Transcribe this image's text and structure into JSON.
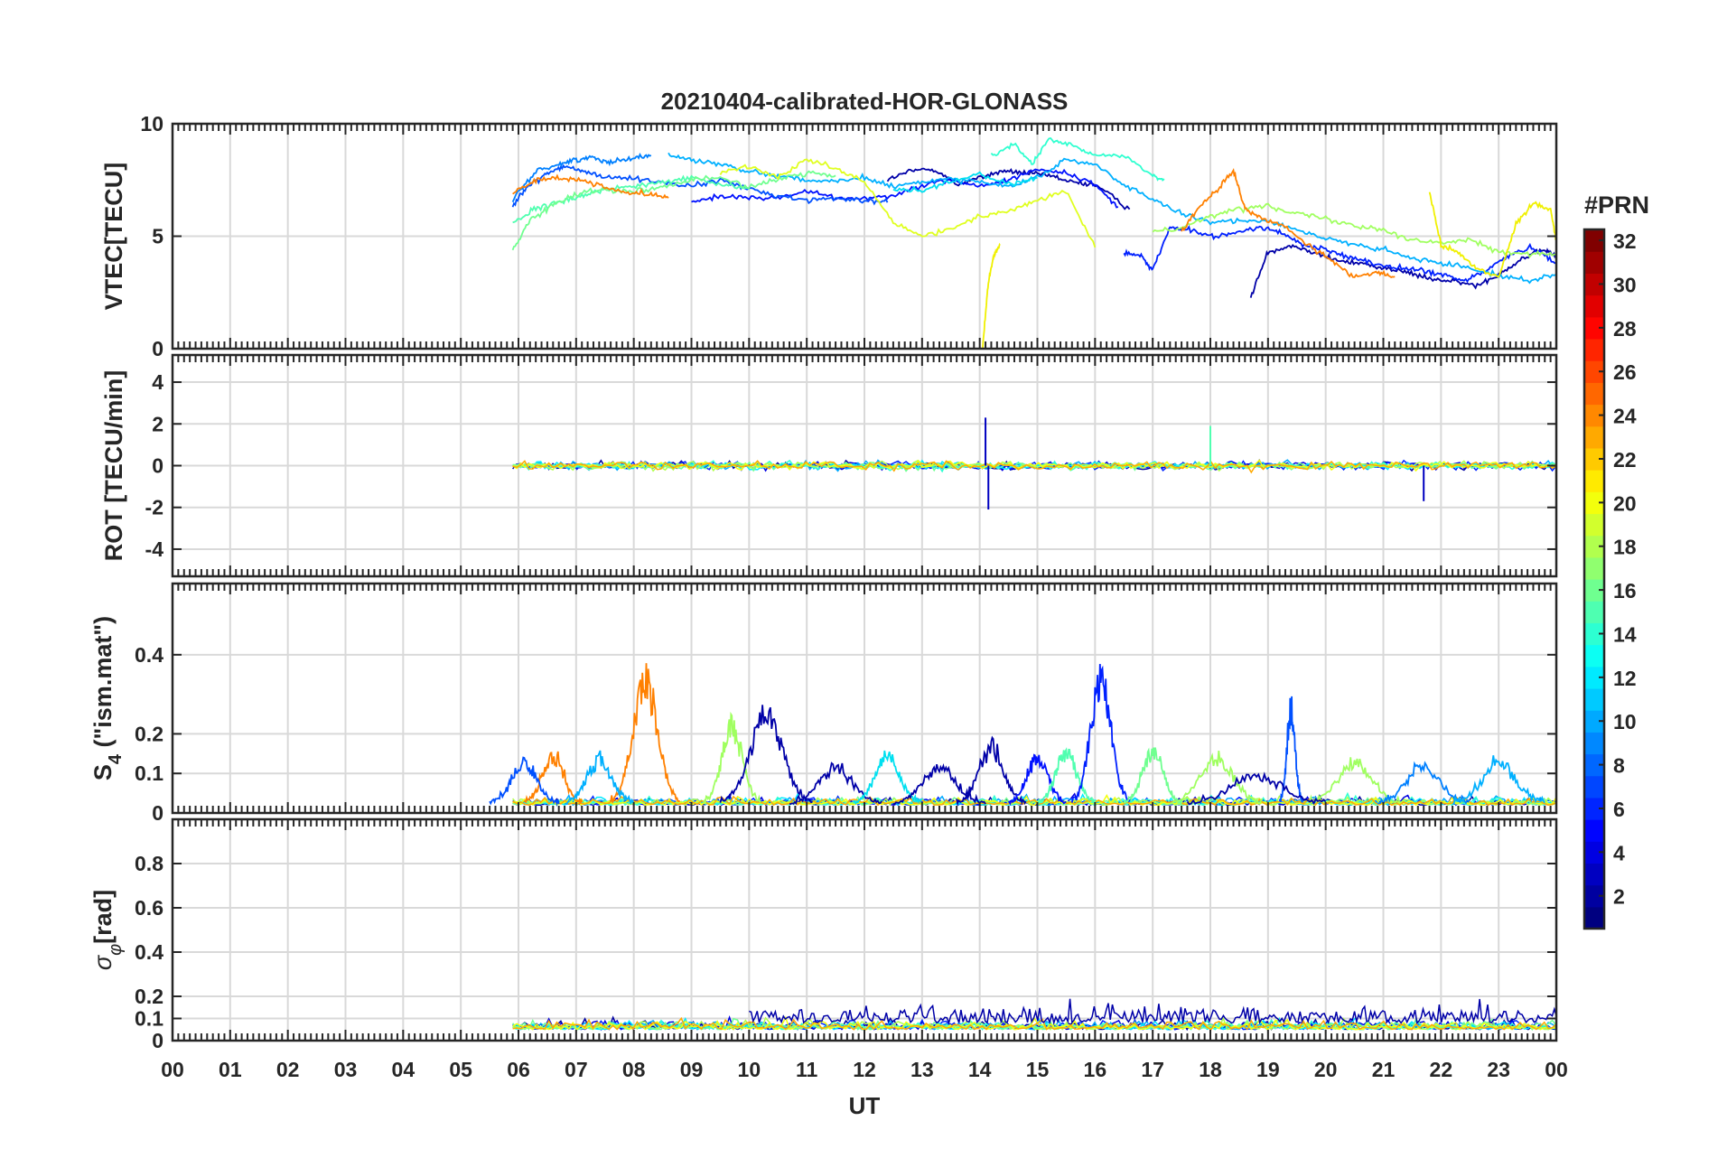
{
  "chart_data": {
    "type": "line",
    "title": "20210404-calibrated-HOR-GLONASS",
    "xlabel": "UT",
    "x_tick_labels": [
      "00",
      "01",
      "02",
      "03",
      "04",
      "05",
      "06",
      "07",
      "08",
      "09",
      "10",
      "11",
      "12",
      "13",
      "14",
      "15",
      "16",
      "17",
      "18",
      "19",
      "20",
      "21",
      "22",
      "23",
      "00"
    ],
    "xlim": [
      0,
      24
    ],
    "grid": true,
    "colorbar": {
      "title": "#PRN",
      "range": [
        1,
        32
      ],
      "tick_labels": [
        "2",
        "4",
        "6",
        "8",
        "10",
        "12",
        "14",
        "16",
        "18",
        "20",
        "22",
        "24",
        "26",
        "28",
        "30",
        "32"
      ],
      "colormap": "jet"
    },
    "panels": [
      {
        "id": "vtec",
        "ylabel": "VTEC[TECU]",
        "ylim": [
          0,
          10
        ],
        "y_ticks": [
          0,
          5,
          10
        ],
        "y_tick_labels": [
          "0",
          "5",
          "10"
        ],
        "series": [
          {
            "prn": 2,
            "color": "#0000a8",
            "x": [
              12.4,
              12.8,
              13.2,
              13.6,
              14.0,
              14.4,
              14.8,
              15.2,
              15.6,
              16.0,
              16.6
            ],
            "y": [
              7.5,
              7.9,
              8.0,
              7.3,
              7.6,
              7.9,
              7.8,
              7.7,
              7.4,
              7.3,
              6.2
            ]
          },
          {
            "prn": 2,
            "color": "#0000a8",
            "x": [
              18.7,
              19.0,
              19.4,
              19.8,
              20.2,
              20.6,
              21.0,
              21.4,
              21.8,
              22.2,
              22.6,
              23.0,
              23.4,
              23.8,
              24.0
            ],
            "y": [
              2.3,
              4.3,
              4.6,
              4.3,
              3.9,
              3.8,
              3.6,
              3.4,
              3.1,
              3.0,
              2.8,
              3.3,
              4.0,
              4.4,
              4.1
            ]
          },
          {
            "prn": 3,
            "color": "#0010ff",
            "x": [
              9.0,
              9.5,
              10.0,
              10.5,
              11.0,
              11.5,
              12.0,
              12.5,
              13.0,
              13.5,
              14.0,
              14.5,
              15.0,
              15.5,
              16.0,
              16.4
            ],
            "y": [
              6.5,
              6.8,
              6.7,
              6.7,
              7.0,
              6.7,
              6.7,
              6.8,
              7.3,
              7.5,
              7.2,
              7.5,
              8.0,
              7.8,
              7.3,
              6.3
            ]
          },
          {
            "prn": 4,
            "color": "#0020ff",
            "x": [
              16.5,
              16.8,
              17.0,
              17.3,
              17.6,
              18.0,
              18.4,
              18.8,
              19.2,
              19.6,
              20.0,
              20.4,
              20.8,
              21.2,
              21.6,
              22.0,
              22.4,
              22.8,
              23.2,
              23.6,
              24.0
            ],
            "y": [
              4.3,
              4.1,
              3.5,
              5.4,
              5.3,
              5.0,
              5.1,
              5.4,
              5.2,
              4.6,
              4.4,
              4.1,
              3.8,
              3.6,
              3.5,
              3.3,
              3.0,
              3.5,
              4.2,
              4.5,
              3.8
            ]
          },
          {
            "prn": 6,
            "color": "#0050ff",
            "x": [
              5.9,
              6.2,
              6.5,
              6.8,
              7.1,
              7.5,
              8.0,
              8.5,
              9.0,
              9.5,
              10.0,
              10.5,
              11.0,
              11.5,
              12.0,
              12.4
            ],
            "y": [
              6.4,
              7.3,
              7.8,
              8.1,
              7.9,
              7.6,
              7.6,
              7.4,
              7.2,
              7.5,
              7.1,
              6.8,
              6.6,
              6.7,
              6.6,
              6.5
            ]
          },
          {
            "prn": 8,
            "color": "#0080ff",
            "x": [
              5.9,
              6.3,
              6.7,
              7.0,
              7.3,
              7.6,
              8.0,
              8.3
            ],
            "y": [
              6.6,
              7.9,
              8.2,
              8.4,
              8.5,
              8.3,
              8.5,
              8.6
            ]
          },
          {
            "prn": 10,
            "color": "#00b0ff",
            "x": [
              8.6,
              9.0,
              9.5,
              10.0,
              10.5,
              11.0,
              11.5,
              12.0,
              12.5,
              13.0,
              13.5,
              14.0,
              14.5,
              15.0,
              15.5,
              16.0,
              16.5,
              17.0,
              17.5,
              18.0,
              18.5,
              19.0,
              19.5,
              20.0,
              20.5,
              21.0,
              21.5,
              22.0,
              22.5,
              23.0,
              23.5,
              24.0
            ],
            "y": [
              8.6,
              8.4,
              8.2,
              7.9,
              7.7,
              7.5,
              7.4,
              7.6,
              7.2,
              7.4,
              7.6,
              7.4,
              7.2,
              7.6,
              8.4,
              8.2,
              7.3,
              6.6,
              6.0,
              5.6,
              5.7,
              5.7,
              5.3,
              4.9,
              4.6,
              4.4,
              4.0,
              3.8,
              3.6,
              3.3,
              3.0,
              3.3
            ]
          },
          {
            "prn": 12,
            "color": "#00e0f0",
            "x": [
              12.5,
              13.0,
              13.5,
              14.0,
              14.5,
              15.0
            ],
            "y": [
              7.1,
              7.0,
              7.4,
              7.8,
              7.3,
              7.6
            ]
          },
          {
            "prn": 13,
            "color": "#30ffd0",
            "x": [
              14.2,
              14.6,
              14.9,
              15.2,
              15.6,
              16.0,
              16.5,
              17.0,
              17.2
            ],
            "y": [
              8.6,
              9.1,
              8.2,
              9.3,
              9.0,
              8.6,
              8.6,
              7.7,
              7.5
            ]
          },
          {
            "prn": 14,
            "color": "#50ffb0",
            "x": [
              5.9,
              6.3,
              6.7,
              7.1,
              7.5,
              8.0,
              8.5,
              9.0,
              9.5,
              10.0
            ],
            "y": [
              5.6,
              6.2,
              6.5,
              6.8,
              7.1,
              7.2,
              7.4,
              7.6,
              7.3,
              7.1
            ]
          },
          {
            "prn": 16,
            "color": "#70ff90",
            "x": [
              5.9,
              6.2,
              6.6,
              7.0,
              7.5,
              8.0,
              8.5,
              9.0,
              9.5,
              10.0,
              10.5,
              11.0,
              11.5
            ],
            "y": [
              4.4,
              5.7,
              6.4,
              6.9,
              7.1,
              7.0,
              7.2,
              7.5,
              7.6,
              7.2,
              7.5,
              7.8,
              7.7
            ]
          },
          {
            "prn": 18,
            "color": "#a0ff60",
            "x": [
              17.0,
              17.5,
              18.0,
              18.5,
              19.0,
              19.5,
              20.0,
              20.5,
              21.0,
              21.5,
              22.0,
              22.5,
              23.0,
              23.5,
              24.0
            ],
            "y": [
              5.2,
              5.4,
              5.9,
              6.2,
              6.4,
              6.0,
              5.8,
              5.5,
              5.3,
              4.8,
              4.7,
              4.9,
              4.3,
              4.2,
              4.2
            ]
          },
          {
            "prn": 20,
            "color": "#e0ff20",
            "x": [
              9.5,
              10.0,
              10.5,
              11.0,
              11.5,
              12.0,
              12.5,
              13.0,
              13.5,
              14.0,
              14.5,
              15.0,
              15.5,
              16.0
            ],
            "y": [
              7.8,
              8.1,
              7.6,
              8.4,
              8.0,
              7.4,
              5.6,
              5.0,
              5.3,
              5.9,
              6.1,
              6.6,
              7.0,
              4.5
            ]
          },
          {
            "prn": 20,
            "color": "#f0f000",
            "x": [
              14.05,
              14.15,
              14.25,
              14.35
            ],
            "y": [
              0.1,
              3.0,
              4.2,
              4.6
            ]
          },
          {
            "prn": 20,
            "color": "#f0f000",
            "x": [
              21.8,
              22.0,
              22.3,
              22.6,
              23.0,
              23.3,
              23.6,
              23.9,
              24.0
            ],
            "y": [
              7.0,
              4.6,
              4.3,
              3.6,
              3.2,
              5.5,
              6.5,
              6.2,
              4.8
            ]
          },
          {
            "prn": 23,
            "color": "#ff8000",
            "x": [
              5.9,
              6.3,
              6.7,
              7.1,
              7.5,
              7.9,
              8.3,
              8.6
            ],
            "y": [
              6.9,
              7.5,
              7.6,
              7.5,
              7.2,
              6.9,
              6.9,
              6.7
            ]
          },
          {
            "prn": 23,
            "color": "#ff8000",
            "x": [
              17.5,
              17.8,
              18.1,
              18.4,
              18.6,
              18.9,
              19.3,
              19.7,
              20.1,
              20.5,
              20.9,
              21.2
            ],
            "y": [
              5.2,
              6.3,
              7.0,
              7.9,
              6.2,
              5.8,
              5.4,
              4.6,
              3.9,
              3.2,
              3.4,
              3.2
            ]
          }
        ]
      },
      {
        "id": "rot",
        "ylabel": "ROT [TECU/min]",
        "ylim": [
          -5.3,
          5.3
        ],
        "y_ticks": [
          -4,
          -2,
          0,
          2,
          4
        ],
        "y_tick_labels": [
          "-4",
          "-2",
          "0",
          "2",
          "4"
        ],
        "value_range_observed": [
          -2.1,
          2.3
        ],
        "spikes": [
          {
            "x": 14.1,
            "y": 2.3
          },
          {
            "x": 14.15,
            "y": -2.1
          },
          {
            "x": 18.0,
            "y": 1.9
          },
          {
            "x": 21.7,
            "y": -1.7
          }
        ]
      },
      {
        "id": "s4",
        "ylabel": "S4 (\"ism.mat\")",
        "ylim": [
          0,
          0.58
        ],
        "y_ticks": [
          0,
          0.1,
          0.2,
          0.4
        ],
        "y_tick_labels": [
          "0",
          "0.1",
          "0.2",
          "0.4"
        ],
        "peaks": [
          {
            "x": 8.2,
            "y": 0.36,
            "prn": 23
          },
          {
            "x": 16.1,
            "y": 0.36,
            "prn": 4
          },
          {
            "x": 10.2,
            "y": 0.25,
            "prn": 2
          },
          {
            "x": 19.4,
            "y": 0.27,
            "prn": 6
          }
        ]
      },
      {
        "id": "sigma_phi",
        "ylabel": "σφ[rad]",
        "ylim": [
          0,
          1.0
        ],
        "y_ticks": [
          0,
          0.1,
          0.2,
          0.4,
          0.6,
          0.8
        ],
        "y_tick_labels": [
          "0",
          "0.1",
          "0.2",
          "0.4",
          "0.6",
          "0.8"
        ],
        "value_range_observed": [
          0.02,
          0.22
        ]
      }
    ]
  }
}
